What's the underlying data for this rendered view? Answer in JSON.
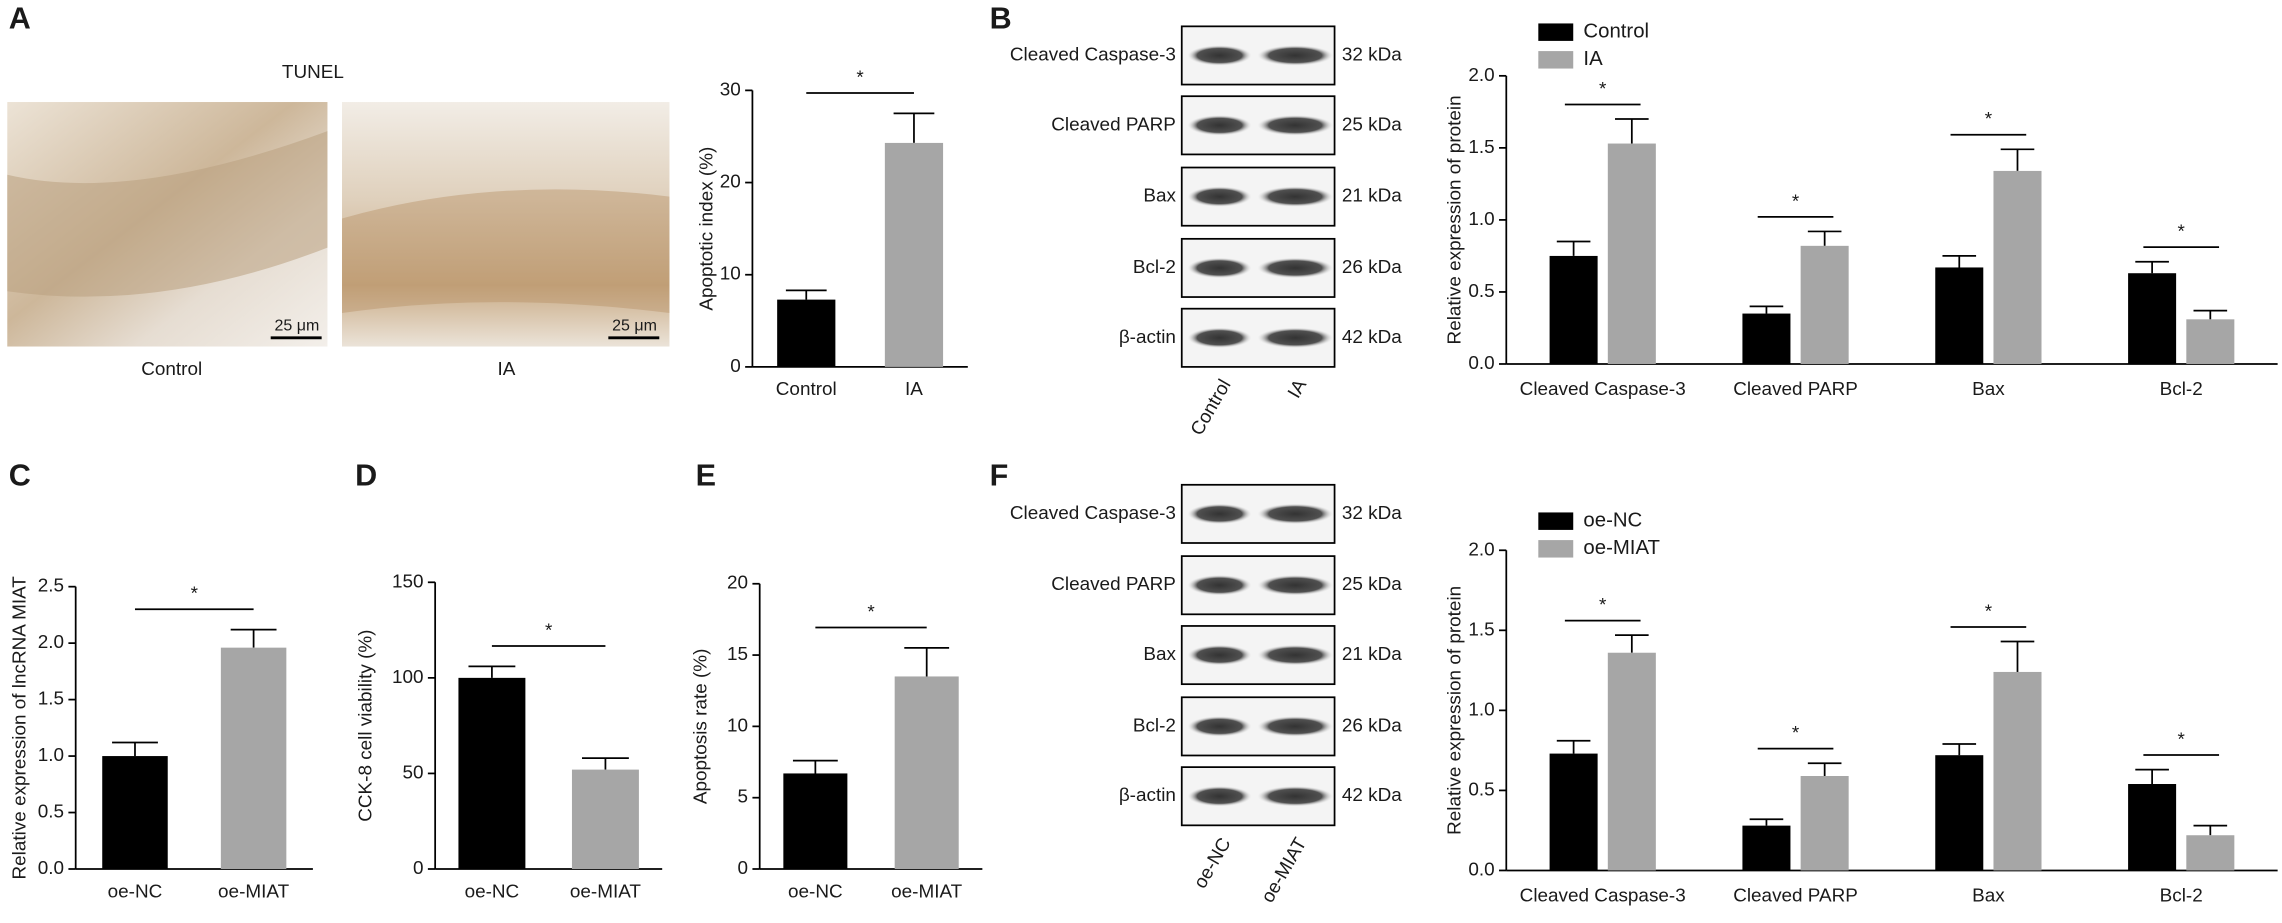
{
  "panel_labels": [
    "A",
    "B",
    "C",
    "D",
    "E",
    "F"
  ],
  "micrographs": {
    "title": "TUNEL",
    "scale_bar": "25 μm",
    "labels": [
      "Control",
      "IA"
    ]
  },
  "blots": [
    {
      "rows": [
        "Cleaved Caspase-3",
        "Cleaved PARP",
        "Bax",
        "Bcl-2",
        "β-actin"
      ],
      "sizes": [
        "32 kDa",
        "25 kDa",
        "21 kDa",
        "26 kDa",
        "42 kDa"
      ],
      "lanes": [
        "Control",
        "IA"
      ]
    },
    {
      "rows": [
        "Cleaved Caspase-3",
        "Cleaved PARP",
        "Bax",
        "Bcl-2",
        "β-actin"
      ],
      "sizes": [
        "32 kDa",
        "25 kDa",
        "21 kDa",
        "26 kDa",
        "42 kDa"
      ],
      "lanes": [
        "oe-NC",
        "oe-MIAT"
      ]
    }
  ],
  "chart_data": [
    {
      "type": "bar",
      "y_label": "Apoptotic index (%)",
      "categories": [
        "Control",
        "IA"
      ],
      "values": [
        7.3,
        24.3
      ],
      "errors": [
        1.0,
        3.2
      ],
      "colors": [
        "#000000",
        "#a6a6a6"
      ],
      "ylim": [
        0,
        30
      ],
      "yticks": [
        0,
        10,
        20,
        30
      ],
      "annotations": [
        "*"
      ]
    },
    {
      "type": "grouped_bar",
      "y_label": "Relative expression of protein",
      "categories": [
        "Cleaved Caspase-3",
        "Cleaved PARP",
        "Bax",
        "Bcl-2"
      ],
      "series": [
        {
          "name": "Control",
          "color": "#000000",
          "values": [
            0.75,
            0.35,
            0.67,
            0.63
          ],
          "errors": [
            0.1,
            0.05,
            0.08,
            0.08
          ]
        },
        {
          "name": "IA",
          "color": "#a6a6a6",
          "values": [
            1.53,
            0.82,
            1.34,
            0.31
          ],
          "errors": [
            0.17,
            0.1,
            0.15,
            0.06
          ]
        }
      ],
      "ylim": [
        0,
        2
      ],
      "yticks": [
        {
          "value": 0,
          "label": "0.0"
        },
        0.5,
        {
          "value": 1,
          "label": "1.0"
        },
        1.5,
        {
          "value": 2,
          "label": "2.0"
        }
      ],
      "legend": "top-left",
      "annotations": [
        "*",
        "*",
        "*",
        "*"
      ]
    },
    {
      "type": "bar",
      "y_label": "Relative expression of  lncRNA MIAT",
      "categories": [
        "oe-NC",
        "oe-MIAT"
      ],
      "values": [
        1.0,
        1.96
      ],
      "errors": [
        0.12,
        0.16
      ],
      "colors": [
        "#000000",
        "#a6a6a6"
      ],
      "ylim": [
        0,
        2.5
      ],
      "yticks": [
        {
          "value": 0,
          "label": "0.0"
        },
        0.5,
        {
          "value": 1,
          "label": "1.0"
        },
        1.5,
        {
          "value": 2,
          "label": "2.0"
        },
        2.5
      ],
      "annotations": [
        "*"
      ]
    },
    {
      "type": "bar",
      "y_label": "CCK-8 cell viability (%)",
      "categories": [
        "oe-NC",
        "oe-MIAT"
      ],
      "values": [
        100,
        52
      ],
      "errors": [
        6,
        6
      ],
      "colors": [
        "#000000",
        "#a6a6a6"
      ],
      "ylim": [
        0,
        150
      ],
      "yticks": [
        0,
        50,
        100,
        150
      ],
      "annotations": [
        "*"
      ]
    },
    {
      "type": "bar",
      "y_label": "Apoptosis rate (%)",
      "categories": [
        "oe-NC",
        "oe-MIAT"
      ],
      "values": [
        6.7,
        13.5
      ],
      "errors": [
        0.9,
        2.0
      ],
      "colors": [
        "#000000",
        "#a6a6a6"
      ],
      "ylim": [
        0,
        20
      ],
      "yticks": [
        0,
        5,
        10,
        15,
        20
      ],
      "annotations": [
        "*"
      ]
    },
    {
      "type": "grouped_bar",
      "y_label": "Relative expression of protein",
      "categories": [
        "Cleaved Caspase-3",
        "Cleaved PARP",
        "Bax",
        "Bcl-2"
      ],
      "series": [
        {
          "name": "oe-NC",
          "color": "#000000",
          "values": [
            0.73,
            0.28,
            0.72,
            0.54
          ],
          "errors": [
            0.08,
            0.04,
            0.07,
            0.09
          ]
        },
        {
          "name": "oe-MIAT",
          "color": "#a6a6a6",
          "values": [
            1.36,
            0.59,
            1.24,
            0.22
          ],
          "errors": [
            0.11,
            0.08,
            0.19,
            0.06
          ]
        }
      ],
      "ylim": [
        0,
        2
      ],
      "yticks": [
        {
          "value": 0,
          "label": "0.0"
        },
        0.5,
        {
          "value": 1,
          "label": "1.0"
        },
        1.5,
        {
          "value": 2,
          "label": "2.0"
        }
      ],
      "legend": "top-left",
      "annotations": [
        "*",
        "*",
        "*",
        "*"
      ]
    }
  ]
}
